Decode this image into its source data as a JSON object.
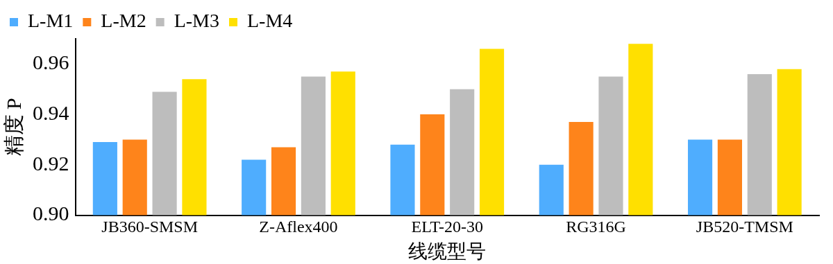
{
  "chart_data": {
    "type": "bar",
    "xlabel": "线缆型号",
    "ylabel": "精度 P",
    "categories": [
      "JB360-SMSM",
      "Z-Aflex400",
      "ELT-20-30",
      "RG316G",
      "JB520-TMSM"
    ],
    "series": [
      {
        "name": "L-M1",
        "color": "#4fadfe",
        "values": [
          0.929,
          0.922,
          0.928,
          0.92,
          0.93
        ]
      },
      {
        "name": "L-M2",
        "color": "#fe841b",
        "values": [
          0.93,
          0.927,
          0.94,
          0.937,
          0.93
        ]
      },
      {
        "name": "L-M3",
        "color": "#bdbdbd",
        "values": [
          0.949,
          0.955,
          0.95,
          0.955,
          0.956
        ]
      },
      {
        "name": "L-M4",
        "color": "#ffe000",
        "values": [
          0.954,
          0.957,
          0.966,
          0.968,
          0.958
        ]
      }
    ],
    "ylim": [
      0.9,
      0.97
    ],
    "yticks": [
      {
        "value": 0.9,
        "label": "0.90"
      },
      {
        "value": 0.92,
        "label": "0.92"
      },
      {
        "value": 0.94,
        "label": "0.94"
      },
      {
        "value": 0.96,
        "label": "0.96"
      }
    ],
    "grid": false,
    "legend": "top left"
  }
}
